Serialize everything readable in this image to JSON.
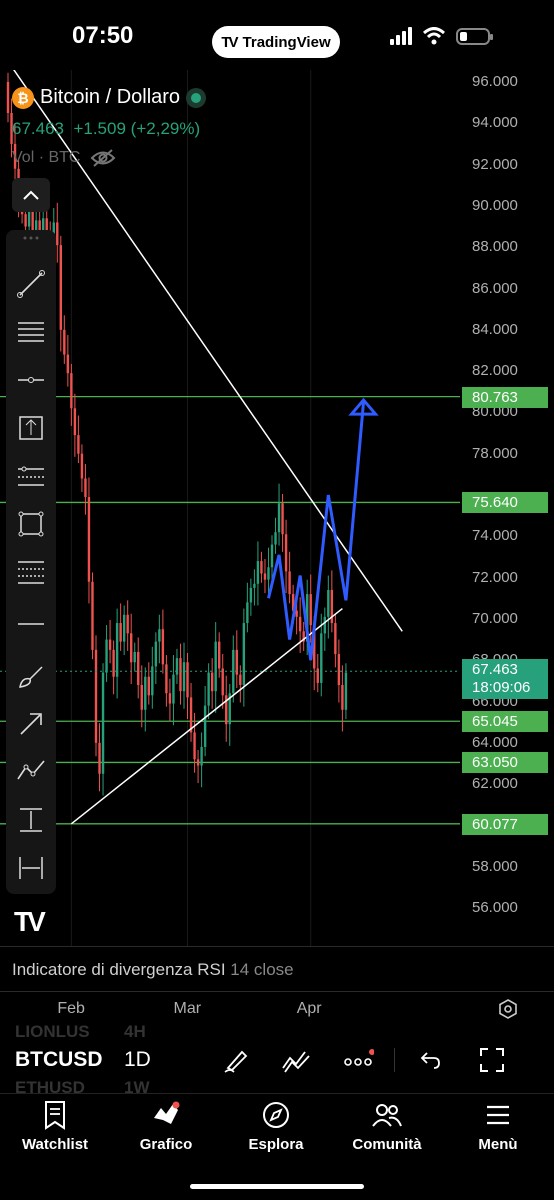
{
  "status_bar": {
    "time": "07:50",
    "app_pill": "TradingView"
  },
  "legend": {
    "symbol_name": "Bitcoin / Dollaro",
    "btc_icon": "₿",
    "price": "67.463",
    "change": "+1.509",
    "change_pct": "(+2,29%)",
    "volume_label": "Vol · BTC"
  },
  "price_axis": {
    "ticks": [
      "96.000",
      "94.000",
      "92.000",
      "90.000",
      "88.000",
      "86.000",
      "84.000",
      "82.000",
      "80.000",
      "78.000",
      "74.000",
      "72.000",
      "70.000",
      "68.000",
      "66.000",
      "64.000",
      "62.000",
      "58.000",
      "56.000"
    ],
    "badges": [
      "80.763",
      "75.640",
      "65.045",
      "63.050",
      "60.077"
    ],
    "current_price": "67.463",
    "countdown": "18:09:06"
  },
  "time_axis": {
    "labels": [
      "Feb",
      "Mar",
      "Apr"
    ]
  },
  "indicator": {
    "name": "Indicatore di divergenza RSI",
    "params": "14 close"
  },
  "symbol_row": {
    "symbol": "BTCUSD",
    "interval": "1D",
    "ghost_top": [
      "LIONLUS",
      "4H"
    ],
    "ghost_bottom": [
      "ETHUSD",
      "1W"
    ]
  },
  "nav": {
    "items": [
      {
        "label": "Watchlist",
        "icon": "bookmark-icon"
      },
      {
        "label": "Grafico",
        "icon": "chart-icon"
      },
      {
        "label": "Esplora",
        "icon": "compass-icon"
      },
      {
        "label": "Comunità",
        "icon": "community-icon"
      },
      {
        "label": "Menù",
        "icon": "menu-icon"
      }
    ]
  },
  "colors": {
    "up": "#26a17b",
    "down": "#ef5350",
    "level": "#4caf50",
    "projection": "#2f5bff",
    "background": "#000000"
  },
  "chart_data": {
    "type": "candlestick",
    "ylim": [
      55000,
      97000
    ],
    "levels": [
      80763,
      75640,
      65045,
      63050,
      60077
    ],
    "trendline_down": [
      [
        0,
        97000
      ],
      [
        112,
        69400
      ]
    ],
    "trendline_up": [
      [
        18,
        60077
      ],
      [
        95,
        70500
      ]
    ],
    "projection_path": [
      [
        74,
        71000
      ],
      [
        77,
        73100
      ],
      [
        80,
        69000
      ],
      [
        83,
        72100
      ],
      [
        86,
        68000
      ],
      [
        91,
        76000
      ],
      [
        96,
        70900
      ],
      [
        101,
        80500
      ]
    ],
    "closes": [
      94500,
      93000,
      91800,
      90500,
      89600,
      89000,
      89800,
      88600,
      89300,
      88200,
      89400,
      88800,
      87900,
      89200,
      88100,
      84000,
      82800,
      81900,
      80200,
      78900,
      78000,
      76800,
      75900,
      71800,
      68500,
      64000,
      62500,
      67400,
      69000,
      68500,
      67200,
      69800,
      68900,
      70200,
      69300,
      67900,
      68400,
      66800,
      65600,
      67200,
      66300,
      67700,
      68900,
      69500,
      67800,
      66400,
      65900,
      67300,
      68100,
      66500,
      67900,
      66200,
      64500,
      63200,
      62900,
      63800,
      65800,
      67400,
      66500,
      68900,
      67600,
      66300,
      64900,
      66400,
      68500,
      67300,
      66800,
      69800,
      70800,
      71500,
      71700,
      72800,
      72200,
      71900,
      72500,
      73600,
      74200,
      75600,
      74100,
      72300,
      71200,
      70400,
      70100,
      69400,
      68900,
      71200,
      69700,
      67600,
      66900,
      69300,
      70100,
      71400,
      69800,
      68300,
      66800,
      65600,
      67400
    ],
    "x_labels": [
      [
        "Feb",
        18
      ],
      [
        "Mar",
        51
      ],
      [
        "Apr",
        86
      ]
    ]
  }
}
